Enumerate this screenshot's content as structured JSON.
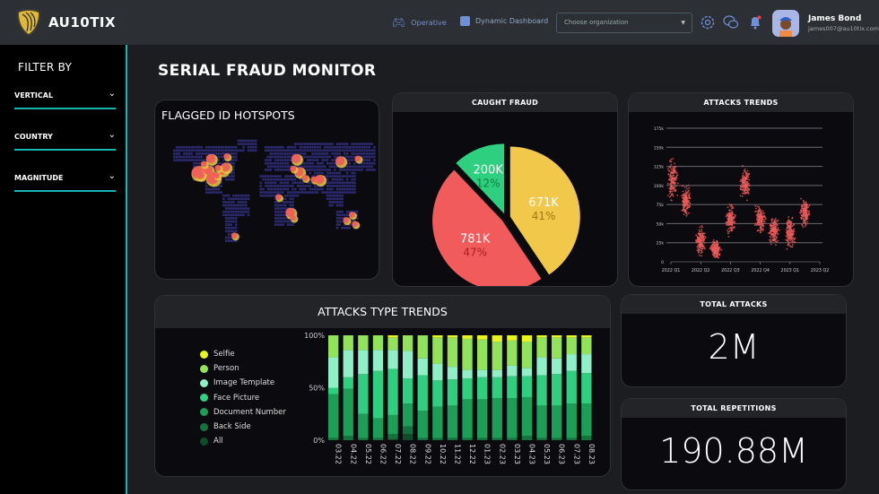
{
  "header": {
    "brand": "AU10TIX",
    "nav": [
      {
        "label": "Operative",
        "icon": "gamepad-icon"
      },
      {
        "label": "Dynamic Dashboard",
        "icon": "puzzle-icon"
      }
    ],
    "org_select": {
      "placeholder": "Choose organization"
    },
    "user": {
      "name": "James Bond",
      "email": "james007@au10tix.com"
    },
    "accent": "#18b5b5"
  },
  "sidebar": {
    "title": "FILTER BY",
    "filters": [
      {
        "label": "VERTICAL"
      },
      {
        "label": "COUNTRY"
      },
      {
        "label": "MAGNITUDE"
      }
    ]
  },
  "page": {
    "title": "SERIAL FRAUD MONITOR"
  },
  "hotspots": {
    "title": "FLAGGED ID HOTSPOTS",
    "points": [
      {
        "lon": -122,
        "lat": 37,
        "mag": 3
      },
      {
        "lon": -118,
        "lat": 34,
        "mag": 2
      },
      {
        "lon": -105,
        "lat": 40,
        "mag": 2
      },
      {
        "lon": -97,
        "lat": 30,
        "mag": 3
      },
      {
        "lon": -100,
        "lat": 55,
        "mag": 2
      },
      {
        "lon": -80,
        "lat": 40,
        "mag": 2
      },
      {
        "lon": -75,
        "lat": 44,
        "mag": 2
      },
      {
        "lon": -73,
        "lat": 58,
        "mag": 1
      },
      {
        "lon": -88,
        "lat": 43,
        "mag": 1
      },
      {
        "lon": -112,
        "lat": 48,
        "mag": 1
      },
      {
        "lon": -90,
        "lat": 33,
        "mag": 1
      },
      {
        "lon": -60,
        "lat": -45,
        "mag": 1
      },
      {
        "lon": 35,
        "lat": -15,
        "mag": 2
      },
      {
        "lon": 40,
        "lat": -22,
        "mag": 1
      },
      {
        "lon": 15,
        "lat": 5,
        "mag": 1
      },
      {
        "lon": 45,
        "lat": 55,
        "mag": 2
      },
      {
        "lon": 50,
        "lat": 38,
        "mag": 2
      },
      {
        "lon": 60,
        "lat": 30,
        "mag": 1
      },
      {
        "lon": 75,
        "lat": 28,
        "mag": 1
      },
      {
        "lon": 85,
        "lat": 28,
        "mag": 2
      },
      {
        "lon": 40,
        "lat": 42,
        "mag": 1
      },
      {
        "lon": 120,
        "lat": 52,
        "mag": 2
      },
      {
        "lon": 150,
        "lat": 55,
        "mag": 1
      },
      {
        "lon": 130,
        "lat": -25,
        "mag": 1
      },
      {
        "lon": 140,
        "lat": -18,
        "mag": 1
      },
      {
        "lon": 145,
        "lat": -30,
        "mag": 1
      }
    ],
    "colors": {
      "land": "#2b2a6e",
      "hot": "#f05a5a",
      "warm": "#e6c93a"
    }
  },
  "caught_fraud": {
    "title": "CAUGHT FRAUD",
    "chart_data": {
      "type": "pie",
      "slices": [
        {
          "label": "671K",
          "percent": "41%",
          "value": 671000,
          "color": "#f2c84b"
        },
        {
          "label": "781K",
          "percent": "47%",
          "value": 781000,
          "color": "#f25b5b"
        },
        {
          "label": "200K",
          "percent": "12%",
          "value": 200000,
          "color": "#2ecf7f"
        }
      ]
    }
  },
  "attacks_trends": {
    "title": "ATTACKS TRENDS",
    "chart_data": {
      "type": "scatter",
      "y_ticks": [
        "0",
        "25k",
        "50k",
        "75k",
        "100k",
        "125k",
        "150k",
        "175k"
      ],
      "ylim": [
        0,
        175000
      ],
      "x_ticks": [
        "2022 Q1",
        "2022 Q2",
        "2022 Q3",
        "2022 Q4",
        "2023 Q1",
        "2023 Q2"
      ],
      "grid": true,
      "color": "#f05a5a",
      "clusters": [
        {
          "quarter": 0.05,
          "mean": 108000,
          "spread": 20000
        },
        {
          "quarter": 0.5,
          "mean": 80000,
          "spread": 15000
        },
        {
          "quarter": 1.0,
          "mean": 27000,
          "spread": 14000
        },
        {
          "quarter": 1.5,
          "mean": 16000,
          "spread": 9000
        },
        {
          "quarter": 2.0,
          "mean": 55000,
          "spread": 16000
        },
        {
          "quarter": 2.5,
          "mean": 103000,
          "spread": 16000
        },
        {
          "quarter": 3.0,
          "mean": 55000,
          "spread": 15000
        },
        {
          "quarter": 3.45,
          "mean": 42000,
          "spread": 15000
        },
        {
          "quarter": 4.0,
          "mean": 38000,
          "spread": 16000
        },
        {
          "quarter": 4.5,
          "mean": 65000,
          "spread": 14000
        }
      ]
    }
  },
  "attack_types": {
    "title": "ATTACKS TYPE TRENDS",
    "chart_data": {
      "type": "bar",
      "stacked": true,
      "y_ticks": [
        "0%",
        "50%",
        "100%"
      ],
      "categories": [
        "03.22",
        "04.22",
        "05.22",
        "06.22",
        "07.22",
        "08.22",
        "09.22",
        "10.22",
        "11.22",
        "12.22",
        "01.23",
        "02.23",
        "03.23",
        "04.23",
        "05.23",
        "06.23",
        "07.23",
        "08.23"
      ],
      "series": [
        {
          "name": "All",
          "color": "#0f4d2a",
          "values": [
            0,
            0,
            0,
            0,
            1,
            6,
            0,
            0,
            0,
            0,
            0,
            0,
            0,
            0,
            0,
            0,
            0,
            0
          ]
        },
        {
          "name": "Back Side",
          "color": "#12733c",
          "values": [
            2,
            4,
            2,
            2,
            5,
            7,
            2,
            2,
            2,
            2,
            2,
            2,
            2,
            4,
            2,
            2,
            2,
            4
          ]
        },
        {
          "name": "Document Number",
          "color": "#1b9e55",
          "values": [
            42,
            45,
            23,
            19,
            18,
            22,
            26,
            30,
            31,
            37,
            37,
            38,
            38,
            37,
            31,
            31,
            33,
            31
          ]
        },
        {
          "name": "Face Picture",
          "color": "#2ecf7f",
          "values": [
            6,
            11,
            38,
            45,
            44,
            24,
            34,
            25,
            25,
            20,
            21,
            20,
            21,
            20,
            29,
            30,
            31,
            29
          ]
        },
        {
          "name": "Image Template",
          "color": "#8ff0c8",
          "values": [
            29,
            26,
            23,
            20,
            18,
            26,
            16,
            16,
            12,
            8,
            7,
            7,
            10,
            8,
            17,
            15,
            16,
            18
          ]
        },
        {
          "name": "Person",
          "color": "#93e35a",
          "values": [
            21,
            14,
            14,
            14,
            12,
            15,
            22,
            25,
            28,
            30,
            29,
            27,
            24,
            25,
            19,
            20,
            16,
            16
          ]
        },
        {
          "name": "Selfie",
          "color": "#e8f51a",
          "values": [
            0,
            0,
            0,
            0,
            2,
            0,
            0,
            2,
            2,
            3,
            4,
            6,
            5,
            6,
            2,
            2,
            2,
            2
          ]
        }
      ]
    }
  },
  "total_attacks": {
    "title": "TOTAL ATTACKS",
    "value": "2M"
  },
  "total_repetitions": {
    "title": "TOTAL REPETITIONS",
    "value": "190.88M"
  }
}
